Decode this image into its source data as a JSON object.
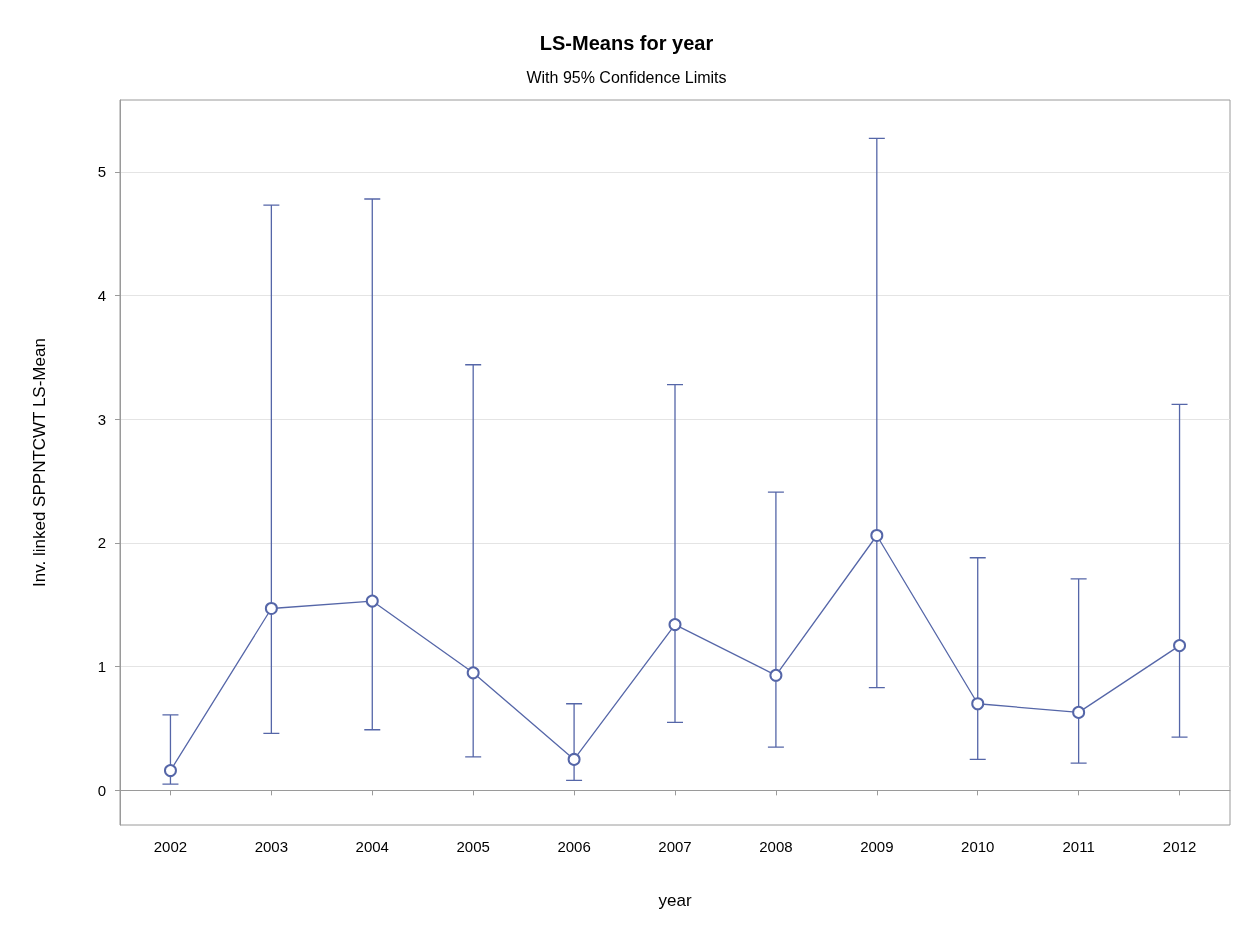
{
  "chart_data": {
    "type": "line",
    "title": "LS-Means for year",
    "subtitle": "With 95% Confidence Limits",
    "xlabel": "year",
    "ylabel": "Inv. linked SPPNTCWT LS-Mean",
    "categories": [
      "2002",
      "2003",
      "2004",
      "2005",
      "2006",
      "2007",
      "2008",
      "2009",
      "2010",
      "2011",
      "2012"
    ],
    "series": [
      {
        "color": "#5566a8",
        "values": [
          0.16,
          1.47,
          1.53,
          0.95,
          0.25,
          1.34,
          0.93,
          2.06,
          0.7,
          0.63,
          1.17
        ],
        "errors": [
          [
            0.05,
            0.61
          ],
          [
            0.46,
            4.73
          ],
          [
            0.49,
            4.78
          ],
          [
            0.27,
            3.44
          ],
          [
            0.08,
            0.7
          ],
          [
            0.55,
            3.28
          ],
          [
            0.35,
            2.41
          ],
          [
            0.83,
            5.27
          ],
          [
            0.25,
            1.88
          ],
          [
            0.22,
            1.71
          ],
          [
            0.43,
            3.12
          ]
        ]
      }
    ],
    "ylim": [
      -0.28,
      5.58
    ],
    "yticks": [
      0,
      1,
      2,
      3,
      4,
      5
    ],
    "grid": "y",
    "marker": "circle",
    "line_style": "solid"
  }
}
